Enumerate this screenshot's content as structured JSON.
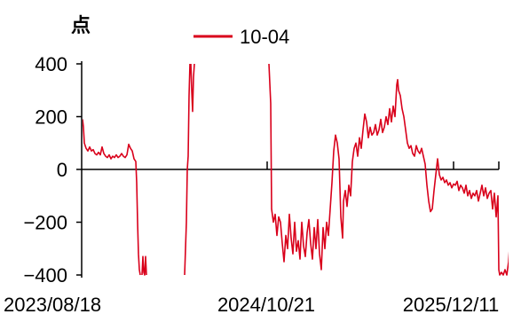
{
  "chart_data": {
    "type": "line",
    "unit_label": "点",
    "ylim": [
      -400,
      400
    ],
    "y_ticks": [
      400,
      200,
      0,
      -200,
      -400
    ],
    "y_tick_labels": [
      "400",
      "200",
      "0",
      "−200",
      "−400"
    ],
    "x_tick_labels": [
      "2023/08/18",
      "2024/10/21",
      "2025/12/11"
    ],
    "legend_position": "top-center",
    "grid": false,
    "colors": {
      "series": "#d9001b",
      "axis": "#000000"
    },
    "series": [
      {
        "name": "10-04",
        "points": [
          [
            0,
            190
          ],
          [
            1,
            160
          ],
          [
            2,
            100
          ],
          [
            4,
            80
          ],
          [
            6,
            70
          ],
          [
            8,
            85
          ],
          [
            10,
            70
          ],
          [
            12,
            75
          ],
          [
            14,
            60
          ],
          [
            16,
            55
          ],
          [
            18,
            65
          ],
          [
            20,
            55
          ],
          [
            22,
            85
          ],
          [
            24,
            60
          ],
          [
            26,
            50
          ],
          [
            28,
            45
          ],
          [
            30,
            55
          ],
          [
            32,
            40
          ],
          [
            34,
            50
          ],
          [
            36,
            45
          ],
          [
            38,
            55
          ],
          [
            40,
            45
          ],
          [
            42,
            50
          ],
          [
            44,
            60
          ],
          [
            46,
            50
          ],
          [
            48,
            45
          ],
          [
            50,
            55
          ],
          [
            52,
            95
          ],
          [
            54,
            80
          ],
          [
            56,
            70
          ],
          [
            58,
            40
          ],
          [
            60,
            30
          ],
          [
            61,
            -50
          ],
          [
            62,
            -200
          ],
          [
            63,
            -320
          ],
          [
            64,
            -380
          ],
          [
            65,
            -400
          ],
          null,
          [
            67,
            -400
          ],
          [
            68,
            -330
          ],
          [
            69,
            -390
          ],
          [
            70,
            -400
          ],
          [
            71,
            -330
          ],
          [
            72,
            -400
          ],
          null,
          [
            115,
            -400
          ],
          [
            116,
            -300
          ],
          [
            117,
            -200
          ],
          [
            118,
            0
          ],
          [
            119,
            50
          ],
          [
            120,
            280
          ],
          [
            121,
            400
          ],
          null,
          [
            122,
            400
          ],
          [
            123,
            300
          ],
          [
            124,
            220
          ],
          [
            125,
            350
          ],
          [
            126,
            400
          ],
          null,
          [
            210,
            400
          ],
          [
            212,
            250
          ],
          [
            213,
            -150
          ],
          [
            215,
            -200
          ],
          [
            217,
            -170
          ],
          [
            219,
            -250
          ],
          [
            221,
            -180
          ],
          [
            223,
            -200
          ],
          [
            225,
            -280
          ],
          [
            227,
            -350
          ],
          [
            229,
            -250
          ],
          [
            231,
            -300
          ],
          [
            233,
            -170
          ],
          [
            235,
            -260
          ],
          [
            237,
            -320
          ],
          [
            239,
            -200
          ],
          [
            241,
            -310
          ],
          [
            243,
            -270
          ],
          [
            245,
            -340
          ],
          [
            247,
            -200
          ],
          [
            249,
            -290
          ],
          [
            251,
            -330
          ],
          [
            253,
            -240
          ],
          [
            255,
            -190
          ],
          [
            257,
            -280
          ],
          [
            259,
            -340
          ],
          [
            261,
            -220
          ],
          [
            263,
            -300
          ],
          [
            265,
            -190
          ],
          [
            267,
            -320
          ],
          [
            269,
            -380
          ],
          [
            271,
            -220
          ],
          [
            273,
            -300
          ],
          [
            275,
            -200
          ],
          [
            277,
            -250
          ],
          [
            279,
            -150
          ],
          [
            281,
            -50
          ],
          [
            283,
            70
          ],
          [
            285,
            130
          ],
          [
            287,
            100
          ],
          [
            289,
            40
          ],
          [
            291,
            -180
          ],
          [
            293,
            -260
          ],
          [
            294,
            -120
          ],
          [
            296,
            -80
          ],
          [
            298,
            -140
          ],
          [
            300,
            -60
          ],
          [
            302,
            -100
          ],
          [
            304,
            30
          ],
          [
            306,
            80
          ],
          [
            308,
            100
          ],
          [
            310,
            50
          ],
          [
            312,
            120
          ],
          [
            314,
            80
          ],
          [
            316,
            150
          ],
          [
            318,
            210
          ],
          [
            320,
            180
          ],
          [
            322,
            120
          ],
          [
            324,
            160
          ],
          [
            326,
            130
          ],
          [
            328,
            140
          ],
          [
            330,
            170
          ],
          [
            332,
            130
          ],
          [
            334,
            150
          ],
          [
            336,
            190
          ],
          [
            338,
            140
          ],
          [
            340,
            160
          ],
          [
            342,
            200
          ],
          [
            344,
            170
          ],
          [
            346,
            230
          ],
          [
            348,
            180
          ],
          [
            350,
            240
          ],
          [
            352,
            200
          ],
          [
            354,
            320
          ],
          [
            355,
            340
          ],
          [
            356,
            300
          ],
          [
            358,
            280
          ],
          [
            360,
            230
          ],
          [
            362,
            200
          ],
          [
            364,
            150
          ],
          [
            366,
            100
          ],
          [
            368,
            80
          ],
          [
            370,
            90
          ],
          [
            372,
            60
          ],
          [
            374,
            50
          ],
          [
            376,
            90
          ],
          [
            378,
            70
          ],
          [
            380,
            60
          ],
          [
            382,
            80
          ],
          [
            384,
            50
          ],
          [
            386,
            20
          ],
          [
            388,
            -60
          ],
          [
            390,
            -120
          ],
          [
            392,
            -160
          ],
          [
            394,
            -150
          ],
          [
            396,
            -80
          ],
          [
            398,
            -20
          ],
          [
            400,
            40
          ],
          [
            402,
            -20
          ],
          [
            404,
            -40
          ],
          [
            406,
            -30
          ],
          [
            408,
            -50
          ],
          [
            410,
            -40
          ],
          [
            412,
            -60
          ],
          [
            414,
            -50
          ],
          [
            416,
            -70
          ],
          [
            418,
            -55
          ],
          [
            420,
            -60
          ],
          [
            422,
            -45
          ],
          [
            424,
            -80
          ],
          [
            426,
            -60
          ],
          [
            428,
            -70
          ],
          [
            430,
            -90
          ],
          [
            432,
            -60
          ],
          [
            434,
            -100
          ],
          [
            436,
            -80
          ],
          [
            438,
            -110
          ],
          [
            440,
            -90
          ],
          [
            442,
            -100
          ],
          [
            444,
            -80
          ],
          [
            446,
            -120
          ],
          [
            448,
            -90
          ],
          [
            450,
            -60
          ],
          [
            452,
            -100
          ],
          [
            454,
            -70
          ],
          [
            456,
            -110
          ],
          [
            458,
            -90
          ],
          [
            460,
            -80
          ],
          [
            462,
            -150
          ],
          [
            464,
            -90
          ],
          [
            466,
            -180
          ],
          [
            468,
            -100
          ],
          [
            469,
            -380
          ],
          [
            470,
            -400
          ],
          [
            472,
            -390
          ],
          [
            474,
            -400
          ],
          [
            476,
            -380
          ],
          [
            478,
            -400
          ],
          [
            480,
            -350
          ],
          [
            482,
            -250
          ],
          [
            484,
            -100
          ]
        ]
      }
    ]
  }
}
